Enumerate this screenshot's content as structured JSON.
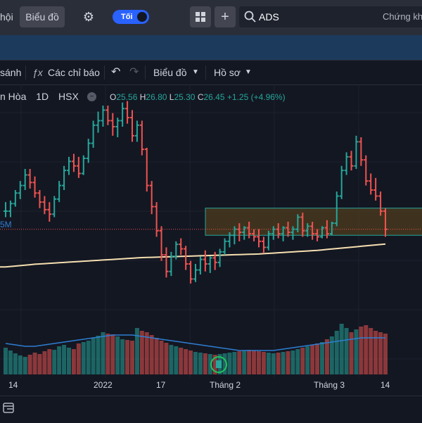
{
  "topbar": {
    "nav_fragment": "hội",
    "chart_tab": "Biểu đồ",
    "theme_toggle_label": "Tối",
    "search_value": "ADS",
    "right_fragment": "Chứng kh"
  },
  "toolbar": {
    "compare_fragment": "sánh",
    "indicators": "Các chỉ báo",
    "chart_menu": "Biểu đồ",
    "profile_menu": "Hồ sơ"
  },
  "legend": {
    "name_fragment": "n Hòa",
    "interval": "1D",
    "exchange": "HSX",
    "open_label": "O",
    "open": "25.56",
    "high_label": "H",
    "high": "26.80",
    "low_label": "L",
    "low": "25.30",
    "close_label": "C",
    "close": "26.45",
    "change": "+1.25 (+4.96%)"
  },
  "price_label_fragment": "5M",
  "colors": {
    "up": "#26a69a",
    "down": "#ef5350",
    "ma": "#f5dfb0",
    "volume_ma": "#2e7dd1",
    "zone_fill": "#4a3a1e",
    "zone_border": "#26a69a"
  },
  "xaxis": {
    "ticks": [
      "14",
      "2022",
      "17",
      "Tháng 2",
      "Tháng 3",
      "14"
    ]
  },
  "chart_data": {
    "type": "ohlc",
    "ohlc": [
      [
        22.6,
        23.2,
        22.2,
        22.6
      ],
      [
        22.6,
        23.3,
        22.2,
        23.1
      ],
      [
        23.1,
        24.0,
        22.9,
        23.8
      ],
      [
        23.8,
        24.6,
        23.4,
        24.3
      ],
      [
        24.3,
        25.4,
        24.0,
        25.0
      ],
      [
        25.0,
        25.4,
        24.1,
        24.5
      ],
      [
        24.5,
        24.9,
        23.5,
        23.8
      ],
      [
        23.8,
        24.0,
        22.8,
        23.2
      ],
      [
        23.2,
        23.6,
        22.4,
        22.7
      ],
      [
        22.7,
        23.2,
        21.9,
        22.4
      ],
      [
        22.4,
        23.6,
        22.2,
        23.4
      ],
      [
        23.4,
        24.6,
        23.2,
        24.3
      ],
      [
        24.3,
        25.6,
        24.0,
        25.3
      ],
      [
        25.3,
        26.2,
        25.0,
        25.9
      ],
      [
        25.9,
        26.4,
        25.2,
        25.6
      ],
      [
        25.6,
        26.2,
        24.8,
        25.1
      ],
      [
        25.1,
        26.3,
        25.0,
        26.1
      ],
      [
        26.1,
        27.4,
        25.8,
        27.1
      ],
      [
        27.1,
        28.6,
        26.8,
        28.3
      ],
      [
        28.3,
        29.2,
        27.8,
        28.6
      ],
      [
        28.6,
        29.6,
        28.2,
        29.3
      ],
      [
        29.3,
        29.6,
        28.3,
        28.6
      ],
      [
        28.6,
        29.1,
        27.6,
        28.2
      ],
      [
        28.2,
        28.8,
        27.5,
        28.6
      ],
      [
        28.6,
        29.8,
        28.2,
        29.4
      ],
      [
        29.4,
        29.9,
        28.4,
        28.8
      ],
      [
        28.8,
        29.3,
        27.2,
        27.6
      ],
      [
        27.6,
        28.6,
        27.2,
        28.3
      ],
      [
        28.3,
        28.6,
        26.3,
        26.7
      ],
      [
        26.7,
        26.8,
        23.9,
        24.3
      ],
      [
        24.3,
        24.6,
        22.4,
        22.9
      ],
      [
        22.9,
        23.2,
        20.9,
        21.3
      ],
      [
        21.3,
        21.6,
        19.3,
        19.7
      ],
      [
        19.7,
        20.2,
        18.2,
        18.6
      ],
      [
        18.6,
        19.9,
        18.3,
        19.6
      ],
      [
        19.6,
        20.6,
        19.4,
        20.4
      ],
      [
        20.4,
        20.8,
        19.7,
        20.1
      ],
      [
        20.1,
        20.3,
        18.7,
        19.1
      ],
      [
        19.1,
        19.3,
        17.8,
        18.1
      ],
      [
        18.1,
        19.1,
        17.9,
        18.7
      ],
      [
        18.7,
        19.6,
        18.4,
        19.4
      ],
      [
        19.4,
        20.0,
        18.6,
        19.1
      ],
      [
        19.1,
        19.6,
        18.5,
        19.5
      ],
      [
        19.5,
        19.9,
        18.7,
        19.2
      ],
      [
        19.2,
        20.1,
        18.9,
        19.9
      ],
      [
        19.9,
        20.8,
        19.7,
        20.6
      ],
      [
        20.6,
        21.2,
        20.2,
        21.0
      ],
      [
        21.0,
        21.6,
        20.4,
        21.4
      ],
      [
        21.4,
        21.8,
        20.6,
        21.2
      ],
      [
        21.2,
        21.6,
        20.7,
        21.5
      ],
      [
        21.5,
        21.9,
        20.8,
        21.1
      ],
      [
        21.1,
        21.4,
        20.6,
        20.9
      ],
      [
        20.9,
        21.4,
        20.2,
        20.6
      ],
      [
        20.6,
        20.9,
        19.8,
        20.2
      ],
      [
        20.2,
        21.3,
        20.0,
        21.1
      ],
      [
        21.1,
        21.6,
        20.7,
        21.4
      ],
      [
        21.4,
        21.8,
        20.8,
        21.1
      ],
      [
        21.1,
        21.6,
        20.6,
        21.5
      ],
      [
        21.5,
        21.9,
        20.9,
        21.2
      ],
      [
        21.2,
        21.6,
        20.7,
        21.4
      ],
      [
        21.4,
        22.4,
        21.2,
        22.2
      ],
      [
        22.2,
        22.5,
        20.9,
        21.3
      ],
      [
        21.3,
        21.8,
        20.9,
        21.6
      ],
      [
        21.6,
        21.9,
        20.7,
        21.1
      ],
      [
        21.1,
        21.4,
        20.6,
        20.9
      ],
      [
        20.9,
        21.6,
        20.8,
        21.5
      ],
      [
        21.5,
        22.0,
        20.8,
        21.1
      ],
      [
        21.1,
        21.9,
        21.0,
        21.8
      ],
      [
        21.8,
        23.9,
        21.6,
        23.6
      ],
      [
        23.6,
        25.6,
        23.4,
        25.3
      ],
      [
        25.3,
        26.5,
        25.0,
        26.2
      ],
      [
        26.2,
        26.6,
        25.3,
        25.6
      ],
      [
        25.6,
        27.6,
        25.4,
        27.2
      ],
      [
        27.2,
        27.5,
        25.6,
        26.0
      ],
      [
        26.0,
        26.3,
        24.3,
        24.6
      ],
      [
        24.6,
        25.1,
        23.7,
        24.0
      ],
      [
        24.0,
        24.8,
        23.3,
        23.6
      ],
      [
        23.6,
        23.9,
        22.3,
        22.6
      ],
      [
        22.6,
        22.8,
        20.9,
        21.4
      ]
    ],
    "ma": [
      18.9,
      18.93,
      18.96,
      18.99,
      19.02,
      19.05,
      19.08,
      19.1,
      19.12,
      19.14,
      19.16,
      19.18,
      19.2,
      19.22,
      19.24,
      19.26,
      19.28,
      19.3,
      19.32,
      19.34,
      19.36,
      19.38,
      19.4,
      19.42,
      19.44,
      19.46,
      19.48,
      19.5,
      19.52,
      19.53,
      19.54,
      19.55,
      19.56,
      19.57,
      19.58,
      19.59,
      19.6,
      19.61,
      19.62,
      19.63,
      19.64,
      19.65,
      19.66,
      19.67,
      19.68,
      19.69,
      19.7,
      19.71,
      19.72,
      19.73,
      19.74,
      19.75,
      19.76,
      19.78,
      19.8,
      19.82,
      19.84,
      19.86,
      19.88,
      19.9,
      19.92,
      19.94,
      19.96,
      19.98,
      20.0,
      20.03,
      20.06,
      20.09,
      20.12,
      20.15,
      20.18,
      20.21,
      20.24,
      20.27,
      20.3,
      20.33,
      20.36,
      20.39,
      20.42
    ],
    "volume": [
      38,
      34,
      30,
      27,
      25,
      28,
      31,
      29,
      33,
      36,
      35,
      40,
      42,
      38,
      36,
      44,
      46,
      48,
      52,
      55,
      60,
      58,
      57,
      54,
      50,
      49,
      48,
      66,
      62,
      60,
      56,
      52,
      48,
      45,
      42,
      40,
      38,
      36,
      34,
      32,
      31,
      30,
      29,
      28,
      29,
      30,
      31,
      32,
      33,
      34,
      35,
      34,
      33,
      32,
      31,
      30,
      31,
      32,
      33,
      34,
      36,
      38,
      40,
      42,
      44,
      46,
      50,
      54,
      62,
      72,
      66,
      60,
      64,
      68,
      70,
      66,
      62,
      60,
      58
    ],
    "volume_ma": [
      44,
      43,
      42,
      41,
      40,
      40,
      40,
      41,
      42,
      43,
      44,
      45,
      46,
      47,
      48,
      49,
      50,
      51,
      52,
      53,
      54,
      55,
      56,
      56,
      56,
      56,
      56,
      55,
      54,
      53,
      52,
      51,
      50,
      49,
      48,
      47,
      46,
      45,
      44,
      43,
      42,
      41,
      40,
      39,
      38,
      37,
      36,
      35,
      34,
      34,
      34,
      34,
      34,
      34,
      34,
      34,
      35,
      36,
      37,
      38,
      39,
      40,
      41,
      42,
      43,
      44,
      45,
      46,
      47,
      48,
      49,
      50,
      51,
      52,
      52,
      52,
      52,
      52,
      52
    ],
    "zone": {
      "from": 21.0,
      "to": 22.8
    },
    "price_range": [
      17,
      31
    ],
    "x_ticks": [
      "14",
      "2022",
      "17",
      "Tháng 2",
      "Tháng 3",
      "14"
    ]
  }
}
